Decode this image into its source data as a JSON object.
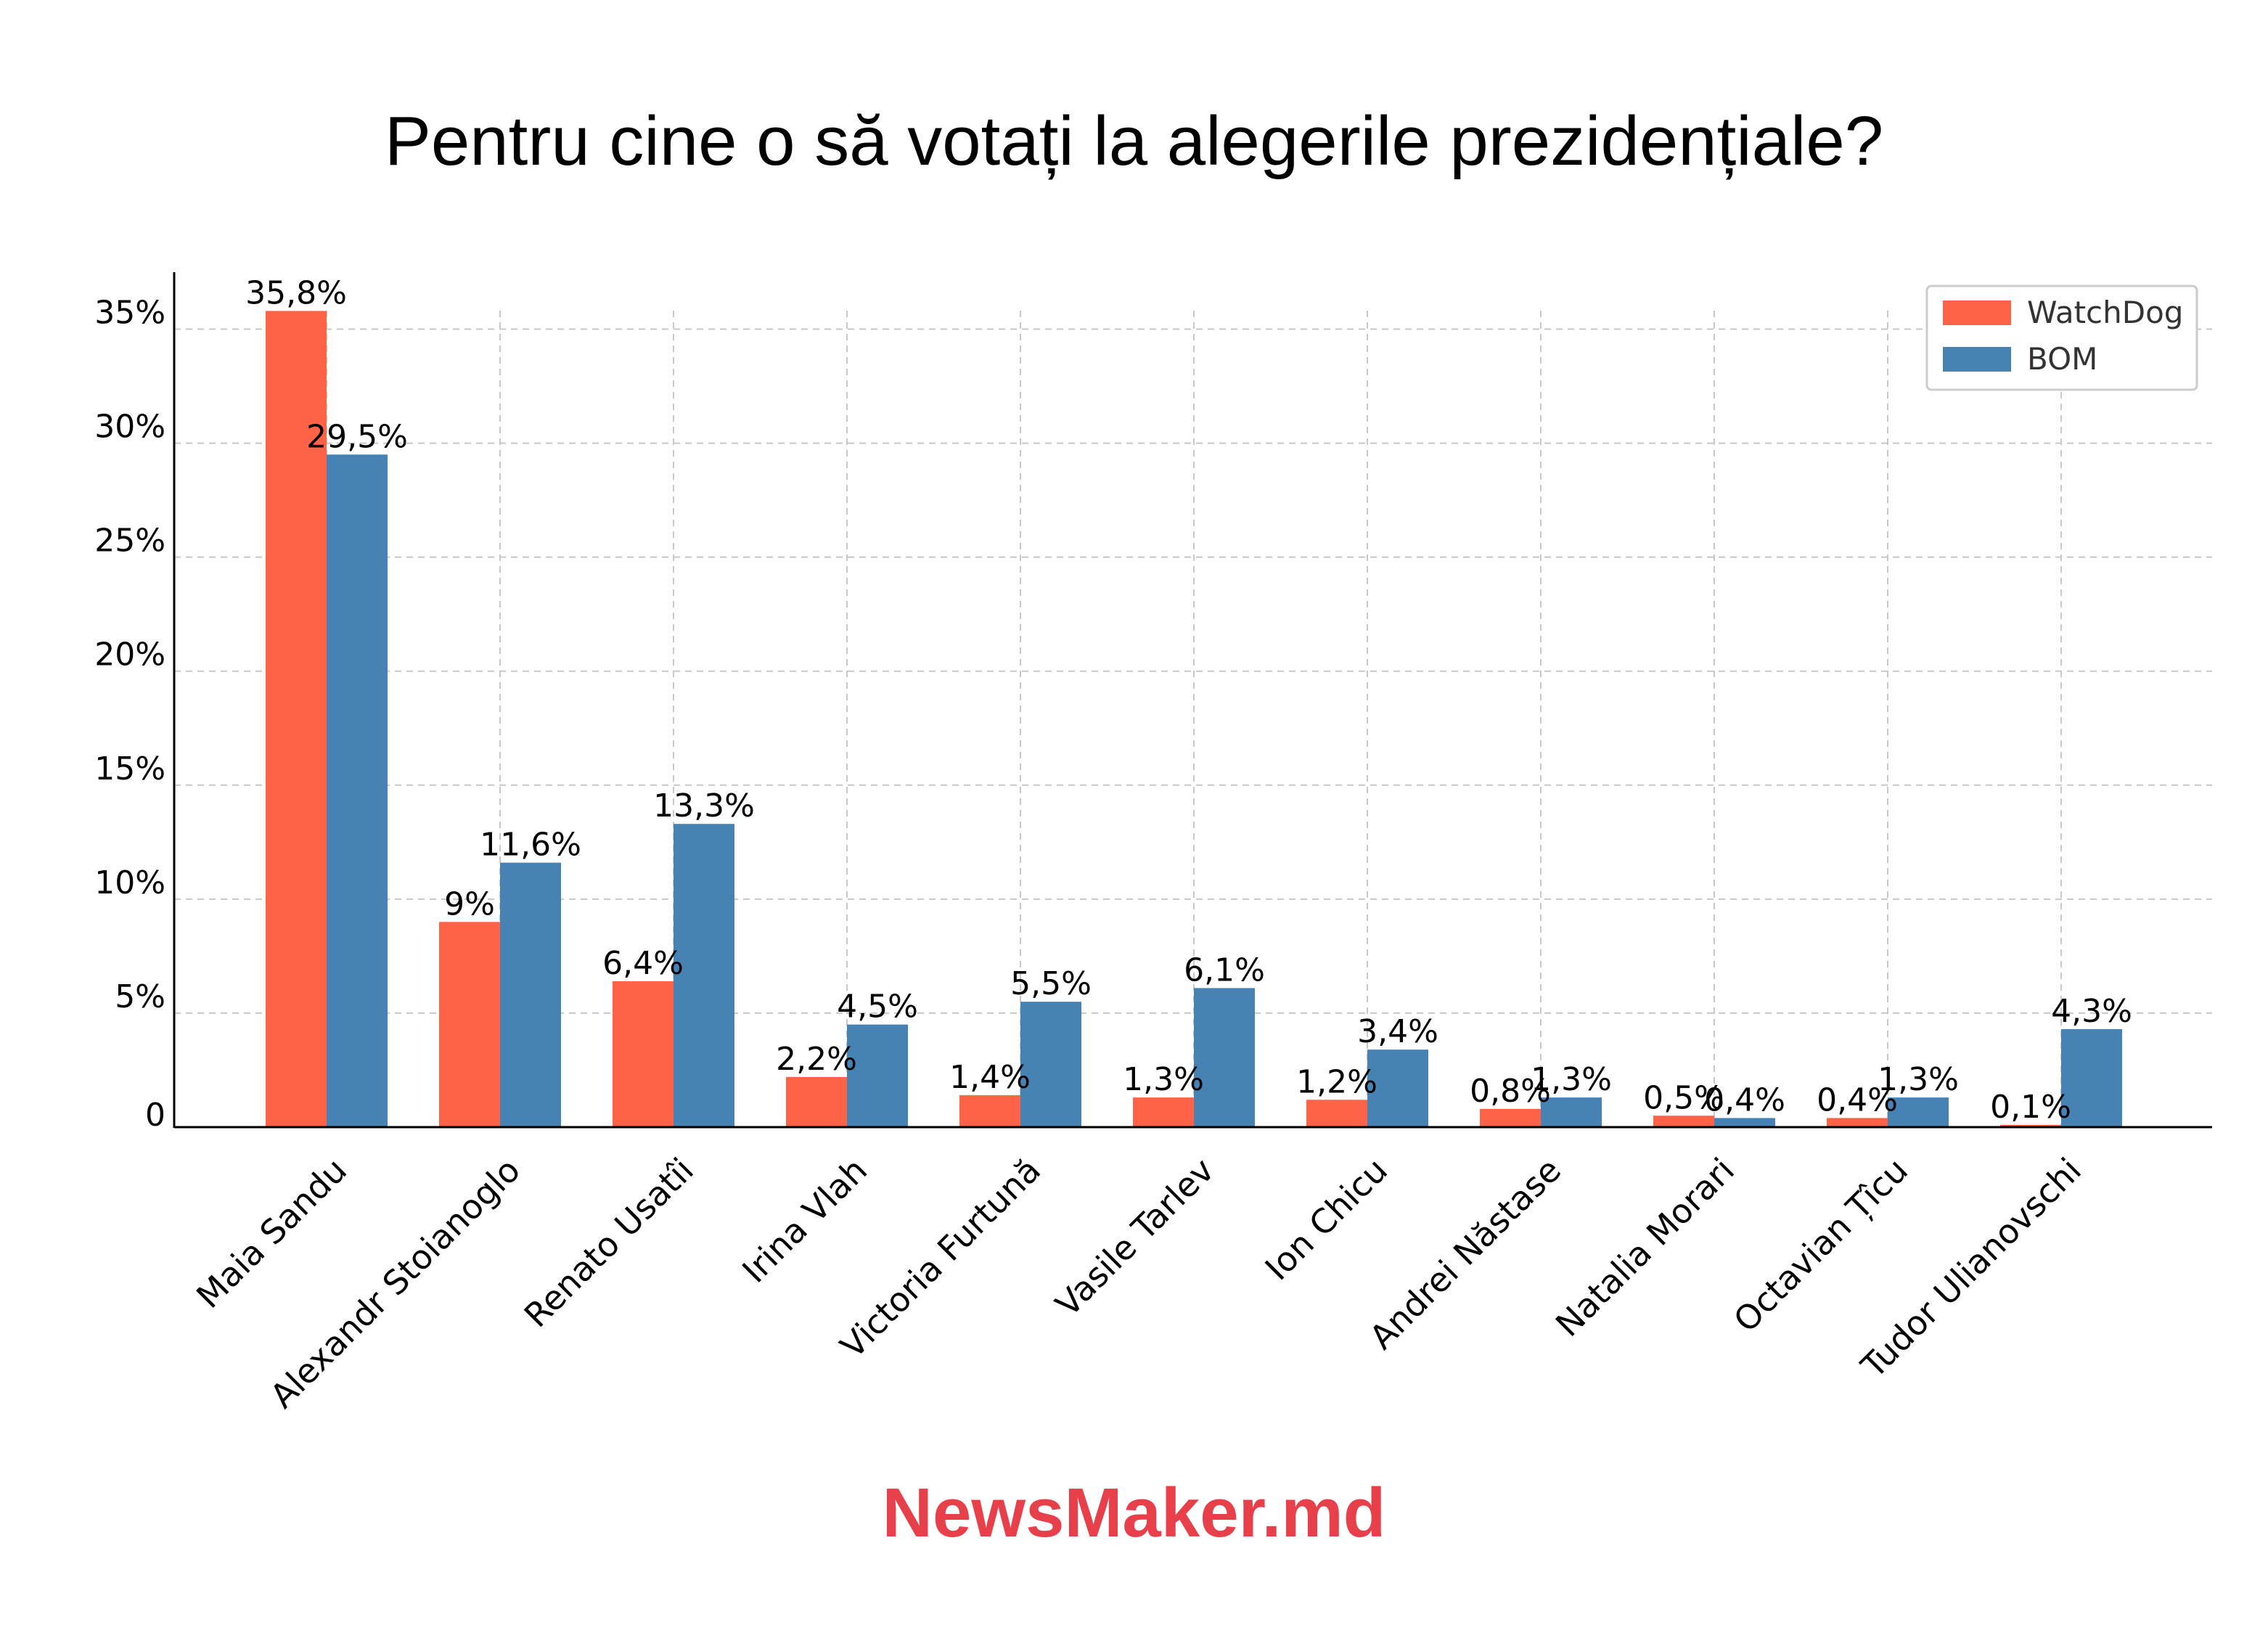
{
  "brand": {
    "text": "NewsMaker.md",
    "color": "#e8404b"
  },
  "chart_data": {
    "type": "bar",
    "title": "Pentru cine o să votați la alegerile prezidențiale?",
    "xlabel": "",
    "ylabel": "",
    "ylim": [
      0,
      37.5
    ],
    "yticks": [
      0,
      5,
      10,
      15,
      20,
      25,
      30,
      35
    ],
    "ytick_labels": [
      "0",
      "5%",
      "10%",
      "15%",
      "20%",
      "25%",
      "30%",
      "35%"
    ],
    "grid": true,
    "legend_position": "top-right",
    "categories": [
      "Maia Sandu",
      "Alexandr Stoianoglo",
      "Renato Usatîi",
      "Irina Vlah",
      "Victoria Furtună",
      "Vasile Tarlev",
      "Ion Chicu",
      "Andrei Năstase",
      "Natalia Morari",
      "Octavian Țîcu",
      "Tudor Ulianovschi"
    ],
    "series": [
      {
        "name": "WatchDog",
        "color": "#ff6347",
        "values": [
          35.8,
          9,
          6.4,
          2.2,
          1.4,
          1.3,
          1.2,
          0.8,
          0.5,
          0.4,
          0.1
        ],
        "labels": [
          "35,8%",
          "9%",
          "6,4%",
          "2,2%",
          "1,4%",
          "1,3%",
          "1,2%",
          "0,8%",
          "0,5%",
          "0,4%",
          "0,1%"
        ]
      },
      {
        "name": "BOM",
        "color": "#4682b4",
        "values": [
          29.5,
          11.6,
          13.3,
          4.5,
          5.5,
          6.1,
          3.4,
          1.3,
          0.4,
          1.3,
          4.3
        ],
        "labels": [
          "29,5%",
          "11,6%",
          "13,3%",
          "4,5%",
          "5,5%",
          "6,1%",
          "3,4%",
          "1,3%",
          "0,4%",
          "1,3%",
          "4,3%"
        ]
      }
    ]
  }
}
